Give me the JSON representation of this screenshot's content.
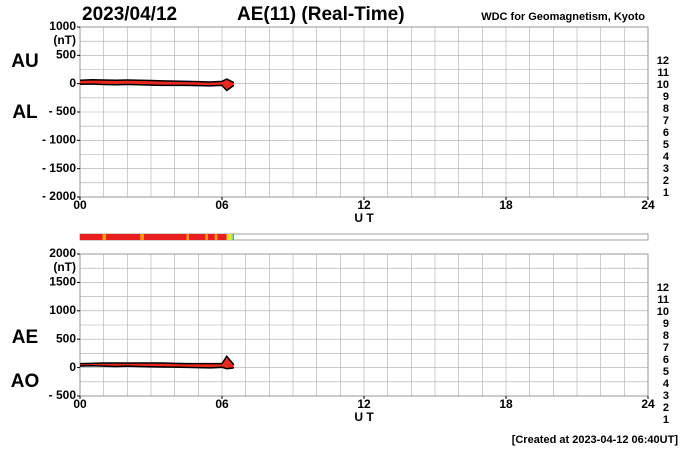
{
  "header": {
    "date": "2023/04/12",
    "title": "AE(11) (Real-Time)",
    "source": "WDC for Geomagnetism, Kyoto"
  },
  "footer": "[Created at 2023-04-12 06:40UT]",
  "levels": [
    {
      "label": "12",
      "color": "#ff1f7a"
    },
    {
      "label": "11",
      "color": "#e81e1e"
    },
    {
      "label": "10",
      "color": "#ff9900"
    },
    {
      "label": "9",
      "color": "#ffe000"
    },
    {
      "label": "8",
      "color": "#b8f030"
    },
    {
      "label": "7",
      "color": "#30d8c8"
    },
    {
      "label": "6",
      "color": "#1e90ff"
    },
    {
      "label": "5",
      "color": "#2020c8"
    },
    {
      "label": "4",
      "color": "#c000e0"
    },
    {
      "label": "3",
      "color": "#000000"
    },
    {
      "label": "2",
      "color": "#808080"
    },
    {
      "label": "1",
      "color": "#d0d0d0"
    }
  ],
  "activity_bar": {
    "segments": [
      {
        "start": 0,
        "end": 0.95,
        "color": "#e81e1e"
      },
      {
        "start": 0.95,
        "end": 1.1,
        "color": "#ff9900"
      },
      {
        "start": 1.1,
        "end": 2.55,
        "color": "#e81e1e"
      },
      {
        "start": 2.55,
        "end": 2.7,
        "color": "#ff9900"
      },
      {
        "start": 2.7,
        "end": 4.5,
        "color": "#e81e1e"
      },
      {
        "start": 4.5,
        "end": 4.6,
        "color": "#ff9900"
      },
      {
        "start": 4.6,
        "end": 5.3,
        "color": "#e81e1e"
      },
      {
        "start": 5.3,
        "end": 5.4,
        "color": "#ff9900"
      },
      {
        "start": 5.4,
        "end": 5.7,
        "color": "#e81e1e"
      },
      {
        "start": 5.7,
        "end": 5.8,
        "color": "#ff9900"
      },
      {
        "start": 5.8,
        "end": 6.2,
        "color": "#e81e1e"
      },
      {
        "start": 6.2,
        "end": 6.35,
        "color": "#ffe000"
      },
      {
        "start": 6.35,
        "end": 6.45,
        "color": "#b8f030"
      },
      {
        "start": 6.45,
        "end": 6.5,
        "color": "#1e90ff"
      }
    ]
  },
  "chart_data": [
    {
      "type": "band",
      "unit": "(nT)",
      "x_label": "U T",
      "fill": "#e8281e",
      "xlim": [
        0,
        24
      ],
      "xticks": [
        {
          "value": 0,
          "label": "00"
        },
        {
          "value": 6,
          "label": "06"
        },
        12,
        18,
        24
      ],
      "ylim": [
        -2000,
        1000
      ],
      "yticks": [
        1000,
        500,
        0,
        {
          "value": -500,
          "label": "- 500"
        },
        {
          "value": -1000,
          "label": "- 1000"
        },
        {
          "value": -1500,
          "label": "- 1500"
        },
        {
          "value": -2000,
          "label": "- 2000"
        }
      ],
      "xgrid_step": 1,
      "ygrid_step": 250,
      "x": [
        0,
        0.5,
        1,
        1.5,
        2,
        2.5,
        3,
        3.5,
        4,
        4.5,
        5,
        5.5,
        6,
        6.2,
        6.5
      ],
      "series": [
        {
          "name": "AU",
          "color": "#000000",
          "values": [
            60,
            70,
            65,
            60,
            65,
            60,
            55,
            50,
            45,
            40,
            35,
            30,
            40,
            80,
            20
          ]
        },
        {
          "name": "AL",
          "color": "#000000",
          "values": [
            -10,
            -5,
            -15,
            -20,
            -15,
            -20,
            -25,
            -30,
            -30,
            -30,
            -35,
            -40,
            -30,
            -120,
            -30
          ]
        }
      ]
    },
    {
      "type": "band",
      "unit": "(nT)",
      "x_label": "U T",
      "fill": "#e8281e",
      "xlim": [
        0,
        24
      ],
      "xticks": [
        {
          "value": 0,
          "label": "00"
        },
        {
          "value": 6,
          "label": "06"
        },
        12,
        18,
        24
      ],
      "ylim": [
        -500,
        2000
      ],
      "yticks": [
        2000,
        1500,
        1000,
        500,
        0,
        {
          "value": -500,
          "label": "- 500"
        }
      ],
      "xgrid_step": 1,
      "ygrid_step": 250,
      "x": [
        0,
        0.5,
        1,
        1.5,
        2,
        2.5,
        3,
        3.5,
        4,
        4.5,
        5,
        5.5,
        6,
        6.2,
        6.5
      ],
      "series": [
        {
          "name": "AE",
          "color": "#000000",
          "values": [
            70,
            75,
            80,
            80,
            80,
            80,
            80,
            80,
            75,
            70,
            70,
            70,
            70,
            200,
            50
          ]
        },
        {
          "name": "AO",
          "color": "#000000",
          "values": [
            25,
            33,
            25,
            20,
            25,
            20,
            15,
            10,
            8,
            5,
            0,
            -5,
            5,
            -20,
            -5
          ]
        }
      ]
    }
  ]
}
